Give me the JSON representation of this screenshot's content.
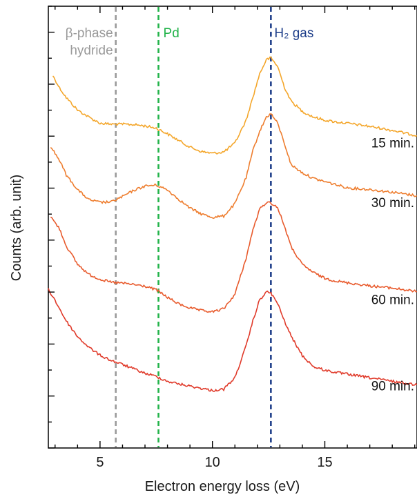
{
  "chart_data": {
    "type": "line",
    "title": "",
    "xlabel": "Electron energy loss (eV)",
    "ylabel": "Counts (arb. unit)",
    "xlim": [
      2.7,
      19.1
    ],
    "ylim": [
      0,
      1
    ],
    "xticks": [
      5,
      10,
      15
    ],
    "xtick_labels": [
      "5",
      "10",
      "15"
    ],
    "y_tick_labels_shown": false,
    "grid": false,
    "reference_lines": [
      {
        "name": "β-phase hydride",
        "label_lines": [
          "β-phase",
          "hydride"
        ],
        "x": 5.7,
        "color": "#9a9a9a"
      },
      {
        "name": "Pd",
        "label_lines": [
          "Pd"
        ],
        "x": 7.6,
        "color": "#22b34a"
      },
      {
        "name": "H₂ gas",
        "label_lines": [
          "H₂ gas"
        ],
        "x": 12.6,
        "color": "#1f3f8a"
      }
    ],
    "series": [
      {
        "name": "15 min.",
        "color": "#f4a62a",
        "x": [
          2.9,
          3.2,
          3.5,
          4.0,
          4.5,
          5.0,
          5.5,
          6.0,
          6.5,
          7.0,
          7.5,
          8.0,
          8.5,
          9.0,
          9.5,
          10.0,
          10.5,
          11.0,
          11.5,
          11.8,
          12.1,
          12.4,
          12.6,
          12.9,
          13.2,
          13.5,
          14.0,
          14.5,
          15.0,
          15.5,
          16.0,
          17.0,
          18.0,
          19.1
        ],
        "y": [
          0.843,
          0.815,
          0.793,
          0.765,
          0.749,
          0.735,
          0.733,
          0.733,
          0.732,
          0.729,
          0.724,
          0.711,
          0.696,
          0.681,
          0.671,
          0.667,
          0.67,
          0.69,
          0.742,
          0.794,
          0.847,
          0.879,
          0.883,
          0.864,
          0.817,
          0.785,
          0.762,
          0.749,
          0.742,
          0.738,
          0.735,
          0.728,
          0.719,
          0.707
        ]
      },
      {
        "name": "30 min.",
        "color": "#ee7d2e",
        "x": [
          2.8,
          3.2,
          3.5,
          4.0,
          4.5,
          5.0,
          5.5,
          6.0,
          6.5,
          7.0,
          7.5,
          8.0,
          8.5,
          9.0,
          9.5,
          10.0,
          10.5,
          11.0,
          11.5,
          11.8,
          12.1,
          12.4,
          12.6,
          12.9,
          13.2,
          13.5,
          14.0,
          14.5,
          15.0,
          15.5,
          16.0,
          17.0,
          18.0,
          19.1
        ],
        "y": [
          0.683,
          0.651,
          0.618,
          0.585,
          0.562,
          0.556,
          0.557,
          0.569,
          0.583,
          0.593,
          0.595,
          0.584,
          0.563,
          0.543,
          0.53,
          0.522,
          0.525,
          0.553,
          0.612,
          0.673,
          0.717,
          0.749,
          0.757,
          0.735,
          0.69,
          0.641,
          0.623,
          0.61,
          0.603,
          0.596,
          0.589,
          0.585,
          0.579,
          0.571
        ]
      },
      {
        "name": "60 min.",
        "color": "#e85a2c",
        "x": [
          2.8,
          3.2,
          3.5,
          4.0,
          4.5,
          5.0,
          5.5,
          6.0,
          6.5,
          7.0,
          7.5,
          8.0,
          8.5,
          9.0,
          9.5,
          10.0,
          10.5,
          11.0,
          11.5,
          11.8,
          12.1,
          12.4,
          12.6,
          12.9,
          13.2,
          13.5,
          14.0,
          14.5,
          15.0,
          15.5,
          16.0,
          17.0,
          18.0,
          19.1
        ],
        "y": [
          0.524,
          0.496,
          0.457,
          0.416,
          0.393,
          0.382,
          0.375,
          0.373,
          0.37,
          0.366,
          0.358,
          0.341,
          0.326,
          0.317,
          0.311,
          0.308,
          0.315,
          0.348,
          0.43,
          0.494,
          0.54,
          0.556,
          0.555,
          0.544,
          0.503,
          0.455,
          0.415,
          0.397,
          0.384,
          0.378,
          0.374,
          0.367,
          0.362,
          0.354
        ]
      },
      {
        "name": "90 min.",
        "color": "#e03a2a",
        "x": [
          2.7,
          3.0,
          3.5,
          4.0,
          4.5,
          5.0,
          5.5,
          6.0,
          6.5,
          7.0,
          7.5,
          8.0,
          8.5,
          9.0,
          9.5,
          10.0,
          10.5,
          11.0,
          11.5,
          11.8,
          12.1,
          12.4,
          12.6,
          12.9,
          13.2,
          13.5,
          14.0,
          14.5,
          15.0,
          15.5,
          16.0,
          17.0,
          18.0,
          19.1
        ],
        "y": [
          0.359,
          0.334,
          0.287,
          0.252,
          0.228,
          0.21,
          0.198,
          0.189,
          0.179,
          0.169,
          0.162,
          0.151,
          0.145,
          0.14,
          0.135,
          0.13,
          0.133,
          0.159,
          0.231,
          0.288,
          0.335,
          0.353,
          0.351,
          0.327,
          0.288,
          0.253,
          0.209,
          0.184,
          0.176,
          0.171,
          0.167,
          0.159,
          0.151,
          0.143
        ]
      }
    ],
    "curve_labels": [
      "15 min.",
      "30 min.",
      "60 min.",
      "90 min."
    ]
  }
}
